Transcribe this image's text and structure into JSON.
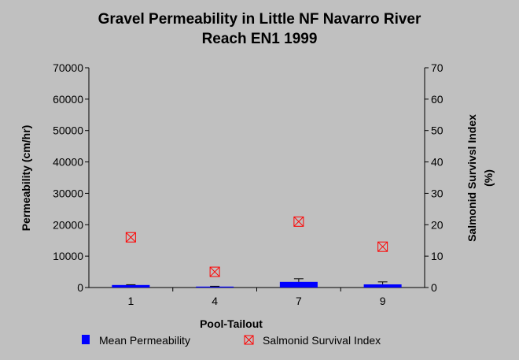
{
  "chart_data": {
    "type": "bar",
    "title": "Gravel Permeability in Little NF Navarro River",
    "subtitle": "Reach EN1 1999",
    "xlabel": "Pool-Tailout",
    "ylabel": "Permeability (cm/hr)",
    "y2label_line1": "Salmonid Survivsl Index",
    "y2label_line2": "(%)",
    "categories": [
      "1",
      "4",
      "7",
      "9"
    ],
    "ylim": [
      0,
      70000
    ],
    "y2lim": [
      0,
      70
    ],
    "yticks": [
      "0",
      "10000",
      "20000",
      "30000",
      "40000",
      "50000",
      "60000",
      "70000"
    ],
    "y2ticks": [
      "0",
      "10",
      "20",
      "30",
      "40",
      "50",
      "60",
      "70"
    ],
    "series": [
      {
        "name": "Mean Permeability",
        "kind": "bar",
        "axis": "left",
        "color": "#0000ff",
        "values": [
          800,
          300,
          1800,
          1000
        ],
        "error_upper": [
          900,
          400,
          2800,
          1800
        ]
      },
      {
        "name": "Salmonid Survival Index",
        "kind": "scatter",
        "axis": "right",
        "color": "#ff0000",
        "marker": "box-x",
        "values": [
          16,
          5,
          21,
          13
        ]
      }
    ],
    "grid": false,
    "legend_position": "bottom"
  }
}
